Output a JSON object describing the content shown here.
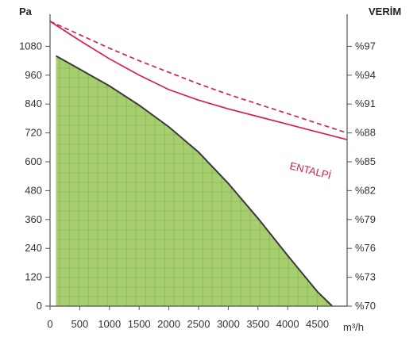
{
  "chart_data": {
    "type": "line",
    "left_axis_title": "Pa",
    "right_axis_title": "VERİM",
    "x_unit_label": "m³/h",
    "xlim": [
      0,
      5000
    ],
    "ylim": [
      0,
      1200
    ],
    "y2lim": [
      70,
      100
    ],
    "x_ticks": [
      0,
      500,
      1000,
      1500,
      2000,
      2500,
      3000,
      3500,
      4000,
      4500
    ],
    "x_tick_labels": [
      "0",
      "500",
      "1000",
      "1500",
      "2000",
      "2500",
      "3000",
      "3500",
      "4000",
      "4500"
    ],
    "y_ticks": [
      0,
      120,
      240,
      360,
      480,
      600,
      720,
      840,
      960,
      1080
    ],
    "y_tick_labels": [
      "0",
      "120",
      "240",
      "360",
      "480",
      "600",
      "720",
      "840",
      "960",
      "1080"
    ],
    "y2_ticks": [
      70,
      73,
      76,
      79,
      82,
      85,
      88,
      91,
      94,
      97
    ],
    "y2_tick_labels": [
      "%70",
      "%73",
      "%76",
      "%79",
      "%82",
      "%85",
      "%88",
      "%91",
      "%94",
      "%97"
    ],
    "grid": true,
    "colors": {
      "area_fill": "#a7cf70",
      "area_edge": "#3a3a3a",
      "efficiency": "#d6204a",
      "grid": "#7aa94e",
      "axis": "#555555"
    },
    "series": [
      {
        "key": "pressure",
        "kind": "area",
        "axis": "left",
        "x": [
          100,
          500,
          1000,
          1500,
          2000,
          2500,
          3000,
          3500,
          4000,
          4500,
          4750
        ],
        "y": [
          1040,
          985,
          915,
          835,
          745,
          640,
          510,
          365,
          210,
          60,
          0
        ]
      },
      {
        "key": "efficiency_entalpi",
        "name": "ENTALPİ",
        "kind": "solid",
        "axis": "right",
        "x": [
          0,
          500,
          1000,
          1500,
          2000,
          2500,
          3000,
          3500,
          4000,
          4500,
          5000
        ],
        "y": [
          99.6,
          97.6,
          95.7,
          94.0,
          92.5,
          91.4,
          90.5,
          89.7,
          88.9,
          88.1,
          87.3
        ]
      },
      {
        "key": "efficiency_dashed",
        "kind": "dashed",
        "axis": "right",
        "x": [
          0,
          500,
          1000,
          1500,
          2000,
          2500,
          3000,
          3500,
          4000,
          4500,
          5000
        ],
        "y": [
          99.6,
          98.2,
          96.8,
          95.5,
          94.3,
          93.1,
          92.0,
          91.0,
          90.0,
          89.0,
          88.0
        ]
      }
    ]
  }
}
